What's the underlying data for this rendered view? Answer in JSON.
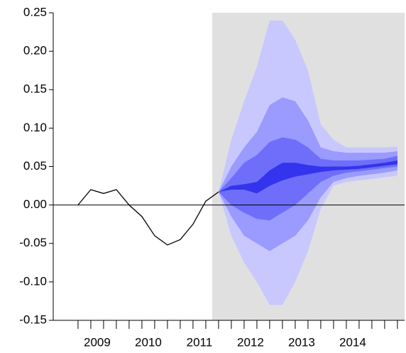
{
  "chart_data": {
    "type": "fan",
    "xlim": [
      2008.64,
      2015.515
    ],
    "ylim": [
      -0.15,
      0.25
    ],
    "xticks": [
      {
        "value": 2009.5,
        "label": "2009"
      },
      {
        "value": 2010.5,
        "label": "2010"
      },
      {
        "value": 2011.5,
        "label": "2011"
      },
      {
        "value": 2012.5,
        "label": "2012"
      },
      {
        "value": 2013.5,
        "label": "2013"
      },
      {
        "value": 2014.5,
        "label": "2014"
      }
    ],
    "yticks": [
      {
        "value": -0.15,
        "label": "-0.15"
      },
      {
        "value": -0.1,
        "label": "-0.10"
      },
      {
        "value": -0.05,
        "label": "-0.05"
      },
      {
        "value": 0,
        "label": "0.00"
      },
      {
        "value": 0.05,
        "label": "0.05"
      },
      {
        "value": 0.1,
        "label": "0.10"
      },
      {
        "value": 0.15,
        "label": "0.15"
      },
      {
        "value": 0.2,
        "label": "0.20"
      },
      {
        "value": 0.25,
        "label": "0.25"
      }
    ],
    "zero_line": true,
    "forecast_start": 2011.75,
    "forecast_color": "#e0e0e0",
    "line": {
      "color": "#000000",
      "x": [
        2009.125,
        2009.375,
        2009.625,
        2009.875,
        2010.125,
        2010.375,
        2010.625,
        2010.875,
        2011.125,
        2011.375,
        2011.625,
        2011.875
      ],
      "values": [
        0,
        0.02,
        0.015,
        0.02,
        0,
        -0.015,
        -0.04,
        -0.052,
        -0.045,
        -0.025,
        0.005,
        0.017
      ]
    },
    "fan_x": [
      2011.875,
      2012.125,
      2012.375,
      2012.625,
      2012.875,
      2013.125,
      2013.375,
      2013.625,
      2013.875,
      2014.125,
      2014.375,
      2014.625,
      2014.875,
      2015.125,
      2015.375
    ],
    "bands": [
      {
        "color": "#c8c8ff",
        "upper": [
          0.017,
          0.085,
          0.135,
          0.18,
          0.24,
          0.24,
          0.215,
          0.175,
          0.105,
          0.085,
          0.075,
          0.075,
          0.075,
          0.075,
          0.076
        ],
        "lower": [
          0.017,
          -0.04,
          -0.075,
          -0.1,
          -0.13,
          -0.13,
          -0.1,
          -0.06,
          -0.005,
          0.025,
          0.03,
          0.032,
          0.034,
          0.036,
          0.038
        ]
      },
      {
        "color": "#9a9aff",
        "upper": [
          0.017,
          0.05,
          0.075,
          0.095,
          0.13,
          0.14,
          0.135,
          0.11,
          0.075,
          0.07,
          0.068,
          0.068,
          0.068,
          0.068,
          0.07
        ],
        "lower": [
          0.017,
          -0.015,
          -0.04,
          -0.05,
          -0.06,
          -0.05,
          -0.04,
          -0.02,
          0.01,
          0.03,
          0.035,
          0.038,
          0.04,
          0.042,
          0.045
        ]
      },
      {
        "color": "#6e6efa",
        "upper": [
          0.017,
          0.035,
          0.055,
          0.065,
          0.082,
          0.088,
          0.085,
          0.075,
          0.06,
          0.058,
          0.058,
          0.058,
          0.059,
          0.06,
          0.064
        ],
        "lower": [
          0.017,
          0,
          -0.01,
          -0.018,
          -0.02,
          -0.01,
          0,
          0.015,
          0.03,
          0.038,
          0.042,
          0.044,
          0.046,
          0.048,
          0.05
        ]
      },
      {
        "color": "#3434ee",
        "upper": [
          0.017,
          0.025,
          0.027,
          0.03,
          0.045,
          0.055,
          0.055,
          0.052,
          0.05,
          0.05,
          0.05,
          0.051,
          0.053,
          0.055,
          0.058
        ],
        "lower": [
          0.017,
          0.02,
          0.02,
          0.015,
          0.025,
          0.032,
          0.037,
          0.04,
          0.043,
          0.045,
          0.046,
          0.047,
          0.049,
          0.051,
          0.053
        ]
      }
    ]
  }
}
